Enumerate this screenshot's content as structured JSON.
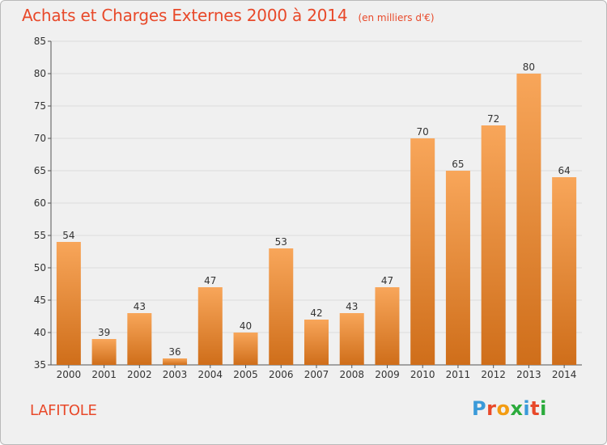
{
  "header": {
    "title": "Achats et Charges Externes 2000 à 2014",
    "subtitle": "(en milliers d'€)"
  },
  "footer": {
    "commune": "LAFITOLE",
    "brand": "Proxiti",
    "brand_letters": [
      "P",
      "r",
      "o",
      "x",
      "i",
      "t",
      "i"
    ],
    "brand_colors": [
      "#3a9ad9",
      "#e8492a",
      "#f39c12",
      "#2bab3c",
      "#3a9ad9",
      "#e8492a",
      "#2bab3c"
    ]
  },
  "colors": {
    "title": "#e8492a",
    "bar_light": "#f8a65a",
    "bar_dark": "#cf6e1a",
    "grid": "#dcdcdc",
    "axis": "#555555",
    "label": "#333333"
  },
  "chart_data": {
    "type": "bar",
    "categories": [
      "2000",
      "2001",
      "2002",
      "2003",
      "2004",
      "2005",
      "2006",
      "2007",
      "2008",
      "2009",
      "2010",
      "2011",
      "2012",
      "2013",
      "2014"
    ],
    "values": [
      54,
      39,
      43,
      36,
      47,
      40,
      53,
      42,
      43,
      47,
      70,
      65,
      72,
      80,
      64
    ],
    "ylim": [
      35,
      85
    ],
    "yticks": [
      35,
      40,
      45,
      50,
      55,
      60,
      65,
      70,
      75,
      80,
      85
    ],
    "grid": true,
    "data_labels": true
  }
}
